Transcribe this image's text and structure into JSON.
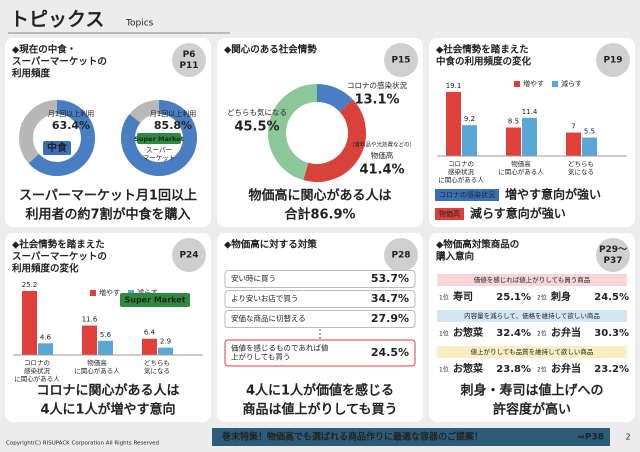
{
  "header": {
    "title": "トピックス",
    "subtitle": "Topics"
  },
  "panels": [
    {
      "title": [
        "◆現在の中食・",
        "スーパーマーケットの",
        "利用頻度"
      ],
      "page": [
        "P6",
        "P11"
      ],
      "charts": [
        {
          "type": "donut",
          "center": [
            "中食"
          ],
          "label": "月1回以上利用",
          "values": [
            63.4
          ],
          "value_labels": [
            "63.4%"
          ],
          "color": "#4a7ec2"
        },
        {
          "type": "donut",
          "logo": "Super Market",
          "center": [
            "スーパー",
            "マーケット"
          ],
          "label": "月1回以上利用",
          "values": [
            85.8
          ],
          "value_labels": [
            "85.8%"
          ],
          "color": "#4a7ec2"
        }
      ],
      "conclusion": [
        "スーパーマーケット月1回以上",
        "利用者の約7割が中食を購入"
      ]
    },
    {
      "title": [
        "◆関心のある社会情勢"
      ],
      "page": [
        "P15"
      ],
      "chart_data": {
        "type": "donut",
        "categories": [
          "コロナの感染状況",
          "物価高",
          "どちらも気になる"
        ],
        "note": "（食料品や光熱費などの）",
        "values": [
          13.1,
          41.4,
          45.5
        ],
        "value_labels": [
          "13.1%",
          "41.4%",
          "45.5%"
        ],
        "colors": [
          "#4a7ec2",
          "#d9413b",
          "#8cc79a"
        ]
      },
      "conclusion": [
        "物価高に関心がある人は",
        "合計86.9%"
      ]
    },
    {
      "title": [
        "◆社会情勢を踏まえた",
        "中食の利用頻度の変化"
      ],
      "page": [
        "P19"
      ],
      "chart_data": {
        "type": "bar",
        "categories": [
          [
            "コロナの",
            "感染状況",
            "に関心がある人"
          ],
          [
            "物価高",
            "に関心がある人"
          ],
          [
            "どちらも",
            "気になる"
          ]
        ],
        "series": [
          {
            "name": "増やす",
            "color": "#e0403a",
            "values": [
              19.1,
              8.5,
              7.0
            ]
          },
          {
            "name": "減らす",
            "color": "#5aa7d6",
            "values": [
              9.2,
              11.4,
              5.5
            ]
          }
        ]
      },
      "tags": [
        {
          "label": "コロナの感染状況",
          "note": "増やす意向が強い",
          "color": "#3a6fb5"
        },
        {
          "label": "物価高",
          "note": "減らす意向が強い",
          "color": "#d9413b"
        }
      ]
    },
    {
      "title": [
        "◆社会情勢を踏まえた",
        "スーパーマーケットの",
        "利用頻度の変化"
      ],
      "page": [
        "P24"
      ],
      "logo": "Super Market",
      "chart_data": {
        "type": "bar",
        "categories": [
          [
            "コロナの",
            "感染状況",
            "に関心がある人"
          ],
          [
            "物価高",
            "に関心がある人"
          ],
          [
            "どちらも",
            "気になる"
          ]
        ],
        "series": [
          {
            "name": "増やす",
            "color": "#e0403a",
            "values": [
              25.2,
              11.6,
              6.4
            ]
          },
          {
            "name": "減らす",
            "color": "#5aa7d6",
            "values": [
              4.6,
              5.6,
              2.9
            ]
          }
        ]
      },
      "conclusion": [
        "コロナに関心がある人は",
        "4人に1人が増やす意向"
      ]
    },
    {
      "title": [
        "◆物価高に対する対策"
      ],
      "page": [
        "P28"
      ],
      "rows": [
        {
          "label": [
            "安い時に買う"
          ],
          "value": "53.7%",
          "highlight": false
        },
        {
          "label": [
            "より安いお店で買う"
          ],
          "value": "34.7%",
          "highlight": false
        },
        {
          "label": [
            "安価な商品に切替える"
          ],
          "value": "27.9%",
          "highlight": false
        },
        {
          "label": [
            "価値を感じるものであれば値",
            "上がりしても買う"
          ],
          "value": "24.5%",
          "highlight": true
        }
      ],
      "conclusion": [
        "4人に1人が価値を感じる",
        "商品は値上がりしても買う"
      ]
    },
    {
      "title": [
        "◆物価高対策商品の",
        "購入意向"
      ],
      "page": [
        "P29～",
        "P37"
      ],
      "groups": [
        {
          "heading": "価値を感じれば値上がりしても買う商品",
          "color": "#f8d6d6",
          "items": [
            {
              "rank": "1位",
              "name": "寿司",
              "value": "25.1%"
            },
            {
              "rank": "2位",
              "name": "刺身",
              "value": "24.5%"
            }
          ]
        },
        {
          "heading": "内容量を減らして、価格を維持して欲しい商品",
          "color": "#d3e6f5",
          "items": [
            {
              "rank": "1位",
              "name": "お惣菜",
              "value": "32.4%"
            },
            {
              "rank": "2位",
              "name": "お弁当",
              "value": "30.3%"
            }
          ]
        },
        {
          "heading": "値上がりしても品質を維持して欲しい商品",
          "color": "#f8eec2",
          "items": [
            {
              "rank": "1位",
              "name": "お惣菜",
              "value": "23.8%"
            },
            {
              "rank": "2位",
              "name": "お弁当",
              "value": "23.2%"
            }
          ]
        }
      ],
      "conclusion": [
        "刺身・寿司は値上げへの",
        "許容度が高い"
      ]
    }
  ],
  "footer": {
    "copyright": "Copyright(C) RISUPACK Corporation All Rights Reserved",
    "banner": "巻末特集！物価高でも選ばれる商品作りに最適な容器のご提案！",
    "link": "⇒P38",
    "page_number": "2"
  }
}
